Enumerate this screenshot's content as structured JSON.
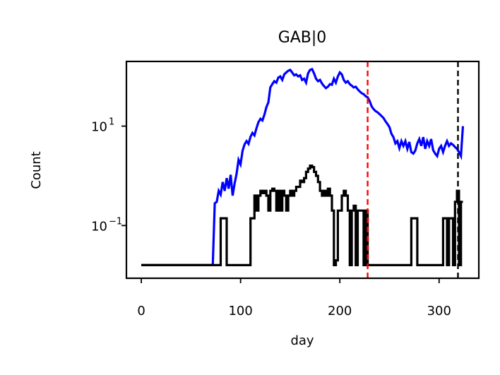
{
  "chart_data": {
    "type": "line",
    "title": "GAB|0",
    "xlabel": "day",
    "ylabel": "Count",
    "xlim": [
      -15,
      340
    ],
    "ylim": [
      0.0087,
      200
    ],
    "yscale": "log",
    "x_ticks": [
      {
        "value": 0,
        "label": "0"
      },
      {
        "value": 100,
        "label": "100"
      },
      {
        "value": 200,
        "label": "200"
      },
      {
        "value": 300,
        "label": "300"
      }
    ],
    "y_ticks": [
      {
        "value": 10,
        "base": "10",
        "exp": "1"
      },
      {
        "value": 0.1,
        "base": "10",
        "exp": "−1"
      }
    ],
    "grid": false,
    "legend": "none",
    "vlines": [
      {
        "x": 228,
        "color": "#ff0000",
        "style": "dashed"
      },
      {
        "x": 319,
        "color": "#000000",
        "style": "dashed"
      }
    ],
    "series": [
      {
        "color": "#0000ff",
        "step": false,
        "points": [
          [
            0,
            0.016
          ],
          [
            72,
            0.016
          ],
          [
            74,
            0.28
          ],
          [
            76,
            0.3
          ],
          [
            78,
            0.5
          ],
          [
            80,
            0.42
          ],
          [
            82,
            0.75
          ],
          [
            84,
            0.5
          ],
          [
            86,
            0.9
          ],
          [
            88,
            0.55
          ],
          [
            90,
            1.05
          ],
          [
            92,
            0.4
          ],
          [
            94,
            0.7
          ],
          [
            96,
            1.1
          ],
          [
            98,
            2.1
          ],
          [
            100,
            1.7
          ],
          [
            102,
            3.2
          ],
          [
            104,
            4.3
          ],
          [
            106,
            5.0
          ],
          [
            108,
            4.4
          ],
          [
            110,
            6.1
          ],
          [
            112,
            7.3
          ],
          [
            114,
            6.5
          ],
          [
            116,
            9.0
          ],
          [
            118,
            12.0
          ],
          [
            120,
            14.0
          ],
          [
            122,
            13.0
          ],
          [
            124,
            17.0
          ],
          [
            126,
            24.0
          ],
          [
            128,
            30.0
          ],
          [
            130,
            60.0
          ],
          [
            132,
            70.0
          ],
          [
            134,
            80.0
          ],
          [
            136,
            75.0
          ],
          [
            138,
            95.0
          ],
          [
            140,
            100.0
          ],
          [
            142,
            85.0
          ],
          [
            144,
            110.0
          ],
          [
            146,
            120.0
          ],
          [
            148,
            130.0
          ],
          [
            150,
            135.0
          ],
          [
            152,
            120.0
          ],
          [
            154,
            105.0
          ],
          [
            156,
            110.0
          ],
          [
            158,
            100.0
          ],
          [
            160,
            105.0
          ],
          [
            162,
            85.0
          ],
          [
            164,
            90.0
          ],
          [
            166,
            75.0
          ],
          [
            168,
            115.0
          ],
          [
            170,
            135.0
          ],
          [
            172,
            140.0
          ],
          [
            174,
            115.0
          ],
          [
            176,
            90.0
          ],
          [
            178,
            80.0
          ],
          [
            180,
            85.0
          ],
          [
            182,
            72.0
          ],
          [
            184,
            64.0
          ],
          [
            186,
            58.0
          ],
          [
            188,
            62.0
          ],
          [
            190,
            70.0
          ],
          [
            192,
            68.0
          ],
          [
            194,
            90.0
          ],
          [
            196,
            75.0
          ],
          [
            198,
            100.0
          ],
          [
            200,
            120.0
          ],
          [
            202,
            110.0
          ],
          [
            204,
            85.0
          ],
          [
            206,
            75.0
          ],
          [
            208,
            80.0
          ],
          [
            210,
            70.0
          ],
          [
            212,
            65.0
          ],
          [
            214,
            60.0
          ],
          [
            216,
            62.0
          ],
          [
            218,
            55.0
          ],
          [
            220,
            50.0
          ],
          [
            222,
            46.0
          ],
          [
            224,
            44.0
          ],
          [
            226,
            40.0
          ],
          [
            228,
            38.0
          ],
          [
            230,
            32.0
          ],
          [
            232,
            25.0
          ],
          [
            234,
            22.0
          ],
          [
            236,
            20.0
          ],
          [
            238,
            19.0
          ],
          [
            240,
            17.5
          ],
          [
            242,
            16.0
          ],
          [
            244,
            14.5
          ],
          [
            246,
            12.5
          ],
          [
            248,
            11.0
          ],
          [
            250,
            9.5
          ],
          [
            252,
            7.0
          ],
          [
            254,
            6.0
          ],
          [
            256,
            4.5
          ],
          [
            258,
            5.0
          ],
          [
            260,
            3.6
          ],
          [
            262,
            5.0
          ],
          [
            264,
            4.0
          ],
          [
            266,
            5.0
          ],
          [
            268,
            3.5
          ],
          [
            270,
            4.8
          ],
          [
            272,
            3.0
          ],
          [
            274,
            2.8
          ],
          [
            276,
            3.2
          ],
          [
            278,
            4.5
          ],
          [
            280,
            5.5
          ],
          [
            282,
            4.0
          ],
          [
            284,
            6.0
          ],
          [
            286,
            3.5
          ],
          [
            288,
            5.0
          ],
          [
            290,
            4.0
          ],
          [
            292,
            5.5
          ],
          [
            294,
            3.3
          ],
          [
            296,
            2.8
          ],
          [
            298,
            2.5
          ],
          [
            300,
            3.5
          ],
          [
            302,
            4.0
          ],
          [
            304,
            3.0
          ],
          [
            306,
            4.0
          ],
          [
            308,
            5.0
          ],
          [
            310,
            4.0
          ],
          [
            312,
            4.5
          ],
          [
            314,
            4.2
          ],
          [
            316,
            3.8
          ],
          [
            318,
            3.5
          ],
          [
            320,
            3.0
          ],
          [
            322,
            2.5
          ],
          [
            324,
            10.0
          ]
        ]
      },
      {
        "color": "#000000",
        "step": true,
        "points": [
          [
            0,
            0.016
          ],
          [
            78,
            0.016
          ],
          [
            80,
            0.14
          ],
          [
            84,
            0.14
          ],
          [
            86,
            0.016
          ],
          [
            108,
            0.016
          ],
          [
            110,
            0.14
          ],
          [
            114,
            0.4
          ],
          [
            116,
            0.2
          ],
          [
            118,
            0.4
          ],
          [
            120,
            0.5
          ],
          [
            122,
            0.45
          ],
          [
            124,
            0.5
          ],
          [
            126,
            0.4
          ],
          [
            128,
            0.2
          ],
          [
            130,
            0.5
          ],
          [
            132,
            0.55
          ],
          [
            134,
            0.5
          ],
          [
            136,
            0.2
          ],
          [
            138,
            0.5
          ],
          [
            140,
            0.2
          ],
          [
            142,
            0.5
          ],
          [
            144,
            0.4
          ],
          [
            146,
            0.2
          ],
          [
            148,
            0.4
          ],
          [
            150,
            0.5
          ],
          [
            152,
            0.4
          ],
          [
            154,
            0.5
          ],
          [
            156,
            0.6
          ],
          [
            158,
            0.6
          ],
          [
            160,
            0.8
          ],
          [
            162,
            0.75
          ],
          [
            164,
            0.9
          ],
          [
            166,
            1.2
          ],
          [
            168,
            1.4
          ],
          [
            170,
            1.6
          ],
          [
            172,
            1.5
          ],
          [
            174,
            1.2
          ],
          [
            176,
            1.0
          ],
          [
            178,
            0.75
          ],
          [
            180,
            0.5
          ],
          [
            182,
            0.4
          ],
          [
            184,
            0.5
          ],
          [
            186,
            0.4
          ],
          [
            188,
            0.55
          ],
          [
            190,
            0.4
          ],
          [
            192,
            0.2
          ],
          [
            194,
            0.016
          ],
          [
            196,
            0.02
          ],
          [
            198,
            0.2
          ],
          [
            200,
            0.2
          ],
          [
            202,
            0.4
          ],
          [
            204,
            0.5
          ],
          [
            206,
            0.4
          ],
          [
            208,
            0.2
          ],
          [
            210,
            0.016
          ],
          [
            212,
            0.2
          ],
          [
            214,
            0.25
          ],
          [
            216,
            0.016
          ],
          [
            218,
            0.2
          ],
          [
            220,
            0.2
          ],
          [
            224,
            0.016
          ],
          [
            226,
            0.2
          ],
          [
            228,
            0.016
          ],
          [
            270,
            0.016
          ],
          [
            272,
            0.14
          ],
          [
            278,
            0.016
          ],
          [
            302,
            0.016
          ],
          [
            304,
            0.14
          ],
          [
            306,
            0.14
          ],
          [
            308,
            0.016
          ],
          [
            310,
            0.14
          ],
          [
            314,
            0.016
          ],
          [
            316,
            0.3
          ],
          [
            318,
            0.5
          ],
          [
            320,
            0.016
          ],
          [
            322,
            0.3
          ],
          [
            324,
            0.3
          ]
        ]
      }
    ]
  }
}
